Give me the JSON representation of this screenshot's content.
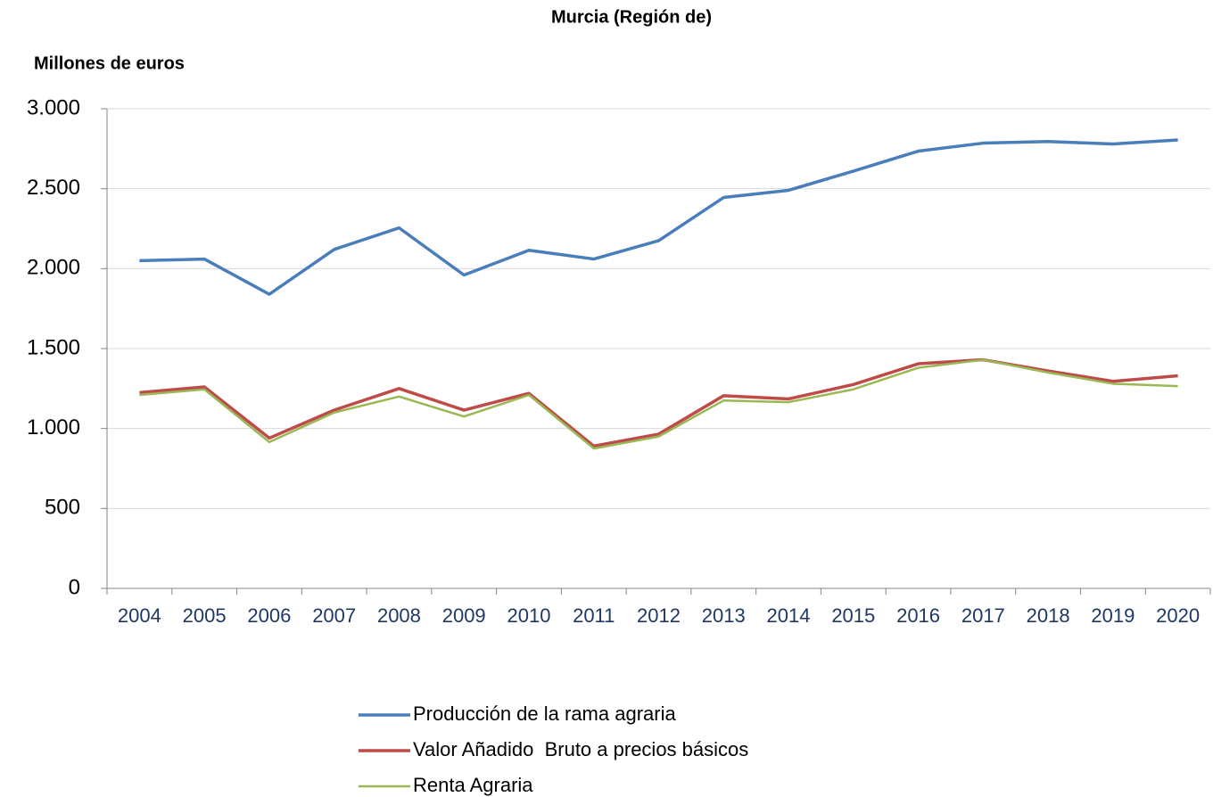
{
  "chart_data": {
    "type": "line",
    "title": "Murcia (Región de)",
    "y_label": "Millones de euros",
    "categories": [
      "2004",
      "2005",
      "2006",
      "2007",
      "2008",
      "2009",
      "2010",
      "2011",
      "2012",
      "2013",
      "2014",
      "2015",
      "2016",
      "2017",
      "2018",
      "2019",
      "2020"
    ],
    "series": [
      {
        "name": "Producción de la rama agraria",
        "color": "#4a7ebb",
        "values": [
          2050,
          2060,
          1840,
          2120,
          2255,
          1960,
          2115,
          2060,
          2175,
          2445,
          2490,
          2610,
          2735,
          2785,
          2795,
          2780,
          2805
        ]
      },
      {
        "name": "Valor Añadido  Bruto a precios básicos",
        "color": "#be4b48",
        "values": [
          1225,
          1260,
          940,
          1115,
          1250,
          1115,
          1220,
          890,
          965,
          1205,
          1185,
          1275,
          1405,
          1430,
          1360,
          1295,
          1330
        ]
      },
      {
        "name": "Renta Agraria",
        "color": "#98b954",
        "values": [
          1210,
          1245,
          915,
          1100,
          1200,
          1075,
          1210,
          875,
          950,
          1175,
          1165,
          1245,
          1380,
          1430,
          1350,
          1280,
          1265
        ]
      }
    ],
    "ylim": [
      0,
      3000
    ],
    "yticks": [
      0,
      500,
      {
        "value": 1000,
        "label": "1.000"
      },
      {
        "value": 1500,
        "label": "1.500"
      },
      {
        "value": 2000,
        "label": "2.000"
      },
      {
        "value": 2500,
        "label": "2.500"
      },
      {
        "value": 3000,
        "label": "3.000"
      }
    ],
    "grid": true,
    "legend": "bottom"
  }
}
